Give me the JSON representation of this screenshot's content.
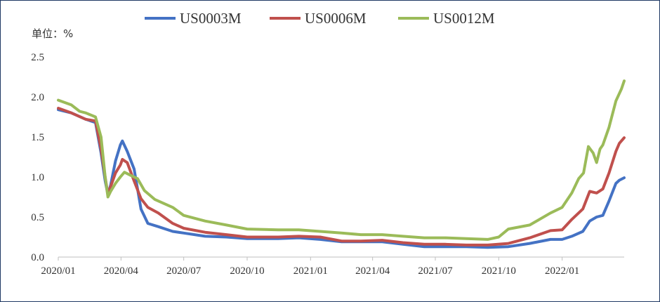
{
  "chart_data": {
    "type": "line",
    "unit_label": "单位：%",
    "legend_position": "top",
    "grid": false,
    "ylim": [
      0,
      2.5
    ],
    "y_ticks": [
      "0.0",
      "0.5",
      "1.0",
      "1.5",
      "2.0",
      "2.5"
    ],
    "x_range": [
      "2020-01-01",
      "2022-04-01"
    ],
    "x_ticks": [
      {
        "date": "2020-01-01",
        "label": "2020/01"
      },
      {
        "date": "2020-04-01",
        "label": "2020/04"
      },
      {
        "date": "2020-07-01",
        "label": "2020/07"
      },
      {
        "date": "2020-10-01",
        "label": "2020/10"
      },
      {
        "date": "2021-01-01",
        "label": "2021/01"
      },
      {
        "date": "2021-04-01",
        "label": "2021/04"
      },
      {
        "date": "2021-07-01",
        "label": "2021/07"
      },
      {
        "date": "2021-10-01",
        "label": "2021/10"
      },
      {
        "date": "2022-01-01",
        "label": "2022/01"
      }
    ],
    "series": [
      {
        "name": "US0003M",
        "color": "#4472c4",
        "points": [
          [
            "2020-01-01",
            1.84
          ],
          [
            "2020-01-20",
            1.8
          ],
          [
            "2020-02-10",
            1.72
          ],
          [
            "2020-02-24",
            1.68
          ],
          [
            "2020-03-03",
            1.3
          ],
          [
            "2020-03-09",
            0.95
          ],
          [
            "2020-03-13",
            0.78
          ],
          [
            "2020-03-17",
            0.9
          ],
          [
            "2020-03-24",
            1.2
          ],
          [
            "2020-03-31",
            1.4
          ],
          [
            "2020-04-03",
            1.45
          ],
          [
            "2020-04-10",
            1.32
          ],
          [
            "2020-04-20",
            1.1
          ],
          [
            "2020-04-30",
            0.6
          ],
          [
            "2020-05-10",
            0.42
          ],
          [
            "2020-05-25",
            0.38
          ],
          [
            "2020-06-15",
            0.32
          ],
          [
            "2020-07-01",
            0.3
          ],
          [
            "2020-08-01",
            0.26
          ],
          [
            "2020-09-01",
            0.25
          ],
          [
            "2020-10-01",
            0.23
          ],
          [
            "2020-11-15",
            0.23
          ],
          [
            "2020-12-15",
            0.24
          ],
          [
            "2021-01-15",
            0.22
          ],
          [
            "2021-02-15",
            0.19
          ],
          [
            "2021-03-15",
            0.19
          ],
          [
            "2021-04-15",
            0.19
          ],
          [
            "2021-05-15",
            0.16
          ],
          [
            "2021-06-15",
            0.13
          ],
          [
            "2021-07-15",
            0.13
          ],
          [
            "2021-08-15",
            0.13
          ],
          [
            "2021-09-15",
            0.12
          ],
          [
            "2021-10-15",
            0.13
          ],
          [
            "2021-11-15",
            0.17
          ],
          [
            "2021-12-15",
            0.22
          ],
          [
            "2022-01-01",
            0.22
          ],
          [
            "2022-01-15",
            0.26
          ],
          [
            "2022-01-31",
            0.32
          ],
          [
            "2022-02-10",
            0.45
          ],
          [
            "2022-02-20",
            0.5
          ],
          [
            "2022-03-01",
            0.52
          ],
          [
            "2022-03-10",
            0.7
          ],
          [
            "2022-03-20",
            0.92
          ],
          [
            "2022-03-25",
            0.96
          ],
          [
            "2022-04-01",
            0.99
          ]
        ]
      },
      {
        "name": "US0006M",
        "color": "#c0504d",
        "points": [
          [
            "2020-01-01",
            1.86
          ],
          [
            "2020-01-20",
            1.8
          ],
          [
            "2020-02-10",
            1.72
          ],
          [
            "2020-02-24",
            1.7
          ],
          [
            "2020-03-03",
            1.35
          ],
          [
            "2020-03-09",
            1.0
          ],
          [
            "2020-03-13",
            0.78
          ],
          [
            "2020-03-17",
            0.88
          ],
          [
            "2020-03-24",
            1.05
          ],
          [
            "2020-03-31",
            1.15
          ],
          [
            "2020-04-03",
            1.22
          ],
          [
            "2020-04-10",
            1.18
          ],
          [
            "2020-04-20",
            0.95
          ],
          [
            "2020-04-30",
            0.73
          ],
          [
            "2020-05-10",
            0.62
          ],
          [
            "2020-05-25",
            0.55
          ],
          [
            "2020-06-15",
            0.42
          ],
          [
            "2020-07-01",
            0.36
          ],
          [
            "2020-08-01",
            0.31
          ],
          [
            "2020-09-01",
            0.28
          ],
          [
            "2020-10-01",
            0.25
          ],
          [
            "2020-11-15",
            0.25
          ],
          [
            "2020-12-15",
            0.26
          ],
          [
            "2021-01-15",
            0.25
          ],
          [
            "2021-02-15",
            0.2
          ],
          [
            "2021-03-15",
            0.2
          ],
          [
            "2021-04-15",
            0.21
          ],
          [
            "2021-05-15",
            0.18
          ],
          [
            "2021-06-15",
            0.16
          ],
          [
            "2021-07-15",
            0.16
          ],
          [
            "2021-08-15",
            0.15
          ],
          [
            "2021-09-15",
            0.15
          ],
          [
            "2021-10-15",
            0.17
          ],
          [
            "2021-11-15",
            0.24
          ],
          [
            "2021-12-15",
            0.33
          ],
          [
            "2022-01-01",
            0.34
          ],
          [
            "2022-01-15",
            0.47
          ],
          [
            "2022-01-31",
            0.6
          ],
          [
            "2022-02-10",
            0.82
          ],
          [
            "2022-02-20",
            0.8
          ],
          [
            "2022-03-01",
            0.85
          ],
          [
            "2022-03-10",
            1.05
          ],
          [
            "2022-03-20",
            1.32
          ],
          [
            "2022-03-25",
            1.42
          ],
          [
            "2022-04-01",
            1.49
          ]
        ]
      },
      {
        "name": "US0012M",
        "color": "#9bbb59",
        "points": [
          [
            "2020-01-01",
            1.96
          ],
          [
            "2020-01-20",
            1.9
          ],
          [
            "2020-02-01",
            1.82
          ],
          [
            "2020-02-10",
            1.8
          ],
          [
            "2020-02-24",
            1.75
          ],
          [
            "2020-03-03",
            1.5
          ],
          [
            "2020-03-09",
            1.0
          ],
          [
            "2020-03-13",
            0.75
          ],
          [
            "2020-03-17",
            0.82
          ],
          [
            "2020-03-24",
            0.92
          ],
          [
            "2020-03-31",
            1.0
          ],
          [
            "2020-04-06",
            1.06
          ],
          [
            "2020-04-15",
            1.02
          ],
          [
            "2020-04-25",
            0.98
          ],
          [
            "2020-05-05",
            0.83
          ],
          [
            "2020-05-20",
            0.72
          ],
          [
            "2020-06-15",
            0.62
          ],
          [
            "2020-07-01",
            0.52
          ],
          [
            "2020-08-01",
            0.45
          ],
          [
            "2020-09-01",
            0.4
          ],
          [
            "2020-10-01",
            0.35
          ],
          [
            "2020-11-15",
            0.34
          ],
          [
            "2020-12-15",
            0.34
          ],
          [
            "2021-01-15",
            0.32
          ],
          [
            "2021-02-15",
            0.3
          ],
          [
            "2021-03-15",
            0.28
          ],
          [
            "2021-04-15",
            0.28
          ],
          [
            "2021-05-15",
            0.26
          ],
          [
            "2021-06-15",
            0.24
          ],
          [
            "2021-07-15",
            0.24
          ],
          [
            "2021-08-15",
            0.23
          ],
          [
            "2021-09-15",
            0.22
          ],
          [
            "2021-10-01",
            0.25
          ],
          [
            "2021-10-15",
            0.35
          ],
          [
            "2021-11-15",
            0.4
          ],
          [
            "2021-12-15",
            0.55
          ],
          [
            "2022-01-01",
            0.62
          ],
          [
            "2022-01-15",
            0.8
          ],
          [
            "2022-01-25",
            0.98
          ],
          [
            "2022-02-01",
            1.05
          ],
          [
            "2022-02-08",
            1.38
          ],
          [
            "2022-02-15",
            1.3
          ],
          [
            "2022-02-20",
            1.18
          ],
          [
            "2022-02-25",
            1.35
          ],
          [
            "2022-03-01",
            1.4
          ],
          [
            "2022-03-10",
            1.62
          ],
          [
            "2022-03-20",
            1.95
          ],
          [
            "2022-03-28",
            2.1
          ],
          [
            "2022-04-01",
            2.2
          ]
        ]
      }
    ]
  }
}
